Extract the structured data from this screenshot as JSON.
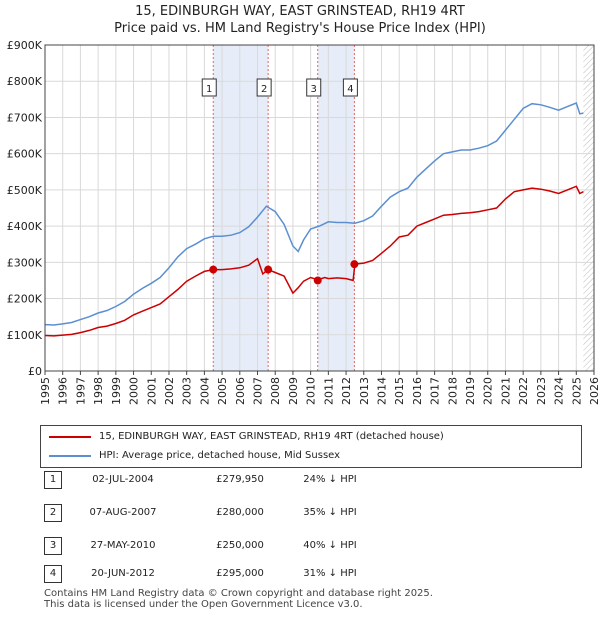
{
  "chart_data": {
    "type": "line",
    "title": "15, EDINBURGH WAY, EAST GRINSTEAD, RH19 4RT",
    "subtitle": "Price paid vs. HM Land Registry's House Price Index (HPI)",
    "y_ticks": [
      "£0",
      "£100K",
      "£200K",
      "£300K",
      "£400K",
      "£500K",
      "£600K",
      "£700K",
      "£800K",
      "£900K"
    ],
    "x_ticks": [
      "1995",
      "1996",
      "1997",
      "1998",
      "1999",
      "2000",
      "2001",
      "2002",
      "2003",
      "2004",
      "2005",
      "2006",
      "2007",
      "2008",
      "2009",
      "2010",
      "2011",
      "2012",
      "2013",
      "2014",
      "2015",
      "2016",
      "2017",
      "2018",
      "2019",
      "2020",
      "2021",
      "2022",
      "2023",
      "2024",
      "2025",
      "2026"
    ],
    "xlim": [
      1995,
      2026
    ],
    "ylim": [
      0,
      900000
    ],
    "series": [
      {
        "name": "15, EDINBURGH WAY, EAST GRINSTEAD, RH19 4RT (detached house)",
        "color": "#cc0000",
        "x": [
          1995,
          1995.5,
          1996,
          1996.5,
          1997,
          1997.5,
          1998,
          1998.5,
          1999,
          1999.5,
          2000,
          2000.5,
          2001,
          2001.5,
          2002,
          2002.5,
          2003,
          2003.5,
          2004,
          2004.5,
          2005,
          2005.5,
          2006,
          2006.5,
          2007,
          2007.3,
          2007.6,
          2008,
          2008.5,
          2009,
          2009.3,
          2009.6,
          2010,
          2010.4,
          2010.8,
          2011,
          2011.5,
          2012,
          2012.4,
          2012.5,
          2013,
          2013.5,
          2014,
          2014.5,
          2015,
          2015.5,
          2016,
          2016.5,
          2017,
          2017.5,
          2018,
          2018.5,
          2019,
          2019.5,
          2020,
          2020.5,
          2021,
          2021.5,
          2022,
          2022.5,
          2023,
          2023.5,
          2024,
          2024.5,
          2025,
          2025.2,
          2025.4
        ],
        "values": [
          98000,
          97000,
          99000,
          101000,
          106000,
          112000,
          120000,
          124000,
          131000,
          140000,
          155000,
          165000,
          175000,
          185000,
          205000,
          225000,
          248000,
          262000,
          275000,
          280000,
          280000,
          282000,
          285000,
          292000,
          310000,
          268000,
          280000,
          272000,
          262000,
          215000,
          230000,
          248000,
          258000,
          252000,
          258000,
          255000,
          257000,
          255000,
          250000,
          295000,
          298000,
          305000,
          325000,
          345000,
          370000,
          375000,
          400000,
          410000,
          420000,
          430000,
          432000,
          435000,
          437000,
          440000,
          445000,
          450000,
          475000,
          495000,
          500000,
          505000,
          502000,
          497000,
          490000,
          500000,
          510000,
          490000,
          495000
        ]
      },
      {
        "name": "HPI: Average price, detached house, Mid Sussex",
        "color": "#5b8fd1",
        "x": [
          1995,
          1995.5,
          1996,
          1996.5,
          1997,
          1997.5,
          1998,
          1998.5,
          1999,
          1999.5,
          2000,
          2000.5,
          2001,
          2001.5,
          2002,
          2002.5,
          2003,
          2003.5,
          2004,
          2004.5,
          2005,
          2005.5,
          2006,
          2006.5,
          2007,
          2007.5,
          2008,
          2008.5,
          2009,
          2009.3,
          2009.6,
          2010,
          2010.5,
          2011,
          2011.5,
          2012,
          2012.5,
          2013,
          2013.5,
          2014,
          2014.5,
          2015,
          2015.5,
          2016,
          2016.5,
          2017,
          2017.5,
          2018,
          2018.5,
          2019,
          2019.5,
          2020,
          2020.5,
          2021,
          2021.5,
          2022,
          2022.5,
          2023,
          2023.5,
          2024,
          2024.5,
          2025,
          2025.2,
          2025.4
        ],
        "values": [
          128000,
          127000,
          130000,
          134000,
          142000,
          150000,
          160000,
          167000,
          178000,
          192000,
          212000,
          228000,
          242000,
          258000,
          285000,
          315000,
          338000,
          350000,
          365000,
          372000,
          372000,
          375000,
          382000,
          398000,
          425000,
          455000,
          440000,
          405000,
          345000,
          330000,
          362000,
          392000,
          400000,
          412000,
          410000,
          410000,
          408000,
          415000,
          428000,
          455000,
          480000,
          495000,
          505000,
          535000,
          558000,
          580000,
          600000,
          605000,
          610000,
          610000,
          615000,
          622000,
          635000,
          665000,
          695000,
          725000,
          738000,
          735000,
          728000,
          720000,
          730000,
          740000,
          710000,
          712000
        ]
      }
    ],
    "sales": [
      {
        "num": "1",
        "year": 2004.5,
        "value": 279950
      },
      {
        "num": "2",
        "year": 2007.6,
        "value": 280000
      },
      {
        "num": "3",
        "year": 2010.4,
        "value": 250000
      },
      {
        "num": "4",
        "year": 2012.47,
        "value": 295000
      }
    ],
    "shaded_ranges": [
      [
        2004.5,
        2007.6
      ],
      [
        2010.4,
        2012.47
      ]
    ],
    "future_from": 2025.4
  },
  "legend": {
    "property": "15, EDINBURGH WAY, EAST GRINSTEAD, RH19 4RT (detached house)",
    "hpi": "HPI: Average price, detached house, Mid Sussex"
  },
  "sales_table": [
    {
      "num": "1",
      "date": "02-JUL-2004",
      "price": "£279,950",
      "hpi": "24% ↓ HPI"
    },
    {
      "num": "2",
      "date": "07-AUG-2007",
      "price": "£280,000",
      "hpi": "35% ↓ HPI"
    },
    {
      "num": "3",
      "date": "27-MAY-2010",
      "price": "£250,000",
      "hpi": "40% ↓ HPI"
    },
    {
      "num": "4",
      "date": "20-JUN-2012",
      "price": "£295,000",
      "hpi": "31% ↓ HPI"
    }
  ],
  "footer": {
    "line1": "Contains HM Land Registry data © Crown copyright and database right 2025.",
    "line2": "This data is licensed under the Open Government Licence v3.0."
  },
  "colors": {
    "property": "#cc0000",
    "hpi": "#5b8fd1",
    "shade": "#e6edf9",
    "grid": "#d9d9d9"
  }
}
